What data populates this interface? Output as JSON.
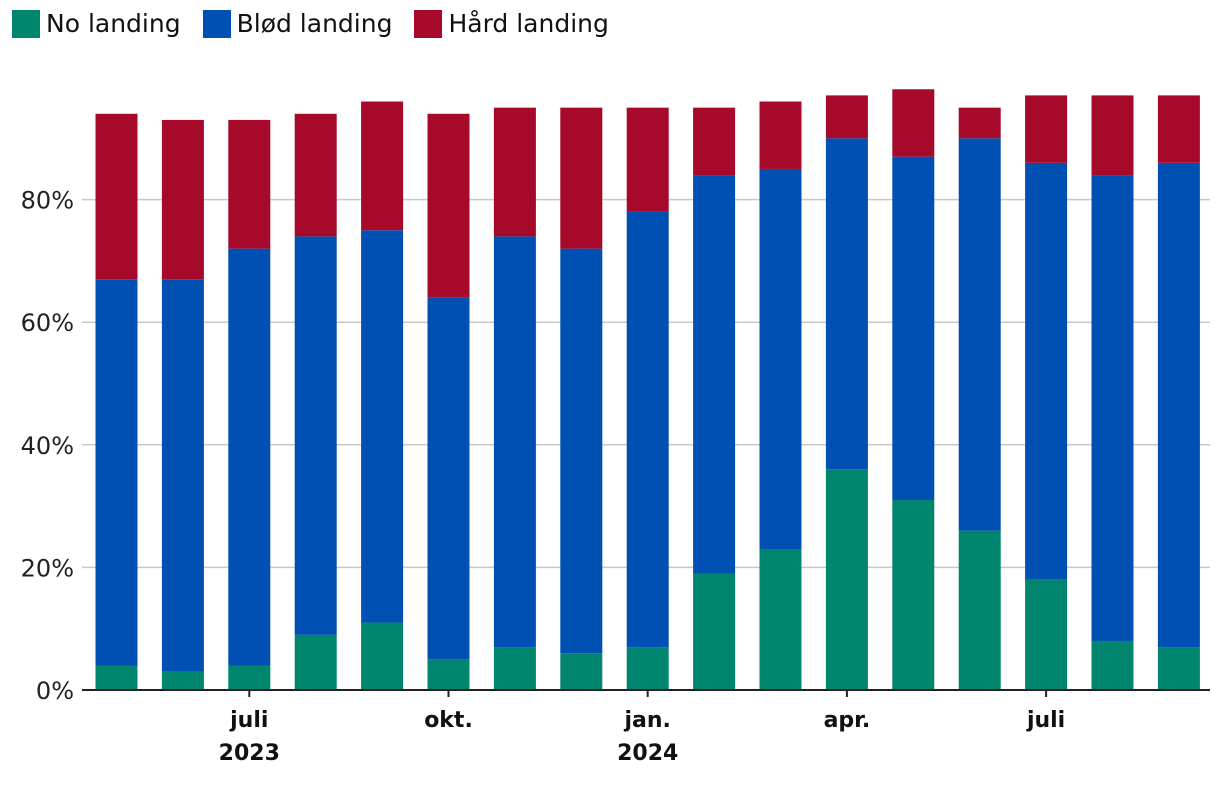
{
  "colors": {
    "no_landing": "#00866e",
    "blod_landing": "#0050b4",
    "hard_landing": "#a6092a"
  },
  "legend": [
    {
      "label": "No landing",
      "color": "#00866e"
    },
    {
      "label": "Blød landing",
      "color": "#0050b4"
    },
    {
      "label": "Hård landing",
      "color": "#a6092a"
    }
  ],
  "chart_data": {
    "type": "bar",
    "stacked": true,
    "title": "",
    "xlabel": "",
    "ylabel": "",
    "ylim": [
      0,
      100
    ],
    "y_ticks": [
      "0%",
      "20%",
      "40%",
      "60%",
      "80%"
    ],
    "y_tick_values": [
      0,
      20,
      40,
      60,
      80
    ],
    "grid": true,
    "legend_position": "top-left",
    "categories": [
      "",
      "",
      "",
      "",
      "",
      "",
      "",
      "",
      "",
      "",
      "",
      "",
      "",
      "",
      "",
      "",
      ""
    ],
    "x_tick_labels": [
      {
        "bar_index": 2,
        "lines": [
          "juli",
          "2023"
        ]
      },
      {
        "bar_index": 5,
        "lines": [
          "okt."
        ]
      },
      {
        "bar_index": 8,
        "lines": [
          "jan.",
          "2024"
        ]
      },
      {
        "bar_index": 11,
        "lines": [
          "apr."
        ]
      },
      {
        "bar_index": 14,
        "lines": [
          "juli"
        ]
      }
    ],
    "series": [
      {
        "name": "No landing",
        "color": "#00866e",
        "values": [
          4,
          3,
          4,
          9,
          11,
          5,
          7,
          6,
          7,
          19,
          23,
          36,
          31,
          26,
          18,
          8,
          7
        ]
      },
      {
        "name": "Blød landing",
        "color": "#0050b4",
        "values": [
          63,
          64,
          68,
          65,
          64,
          59,
          67,
          66,
          71,
          65,
          62,
          54,
          56,
          64,
          68,
          76,
          79
        ]
      },
      {
        "name": "Hård landing",
        "color": "#a6092a",
        "values": [
          27,
          26,
          21,
          20,
          21,
          30,
          21,
          23,
          17,
          11,
          11,
          7,
          11,
          5,
          11,
          13,
          11
        ]
      }
    ]
  }
}
